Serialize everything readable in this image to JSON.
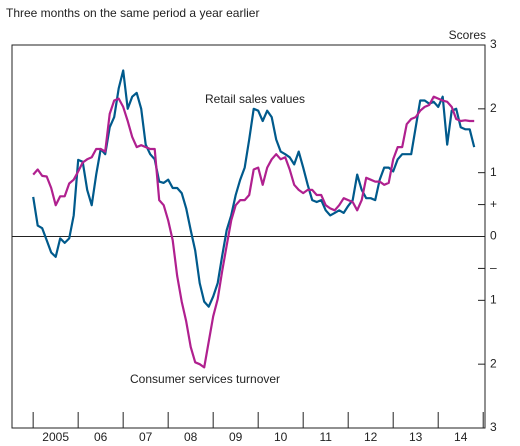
{
  "chart_data": {
    "type": "line",
    "subtitle": "Three months on the same period a year earlier",
    "y_axis_label": "Scores",
    "annotations": [
      "Retail sales values",
      "Consumer services turnover"
    ],
    "categories": [
      "2005",
      "06",
      "07",
      "08",
      "09",
      "10",
      "11",
      "12",
      "13",
      "14"
    ],
    "xlim": [
      2004.53,
      2015.04
    ],
    "xticks": [
      2005,
      2006,
      2007,
      2008,
      2009,
      2010,
      2011,
      2012,
      2013,
      2014,
      2015
    ],
    "ylim": [
      -3,
      3
    ],
    "yticks": [
      3,
      2,
      1,
      {
        "value": 0.5,
        "label": "+"
      },
      0,
      {
        "value": -0.5,
        "label": "–"
      },
      {
        "value": -1,
        "label": "1"
      },
      {
        "value": -2,
        "label": "2"
      },
      {
        "value": -3,
        "label": "3"
      }
    ],
    "zero_line": true,
    "x": [
      2005.0,
      2005.1,
      2005.2,
      2005.3,
      2005.4,
      2005.5,
      2005.6,
      2005.7,
      2005.8,
      2005.9,
      2006.0,
      2006.1,
      2006.2,
      2006.3,
      2006.4,
      2006.5,
      2006.6,
      2006.7,
      2006.8,
      2006.9,
      2007.0,
      2007.1,
      2007.2,
      2007.3,
      2007.4,
      2007.5,
      2007.6,
      2007.7,
      2007.8,
      2007.9,
      2008.0,
      2008.1,
      2008.2,
      2008.3,
      2008.4,
      2008.5,
      2008.6,
      2008.7,
      2008.8,
      2008.9,
      2009.0,
      2009.1,
      2009.2,
      2009.3,
      2009.4,
      2009.5,
      2009.6,
      2009.7,
      2009.8,
      2009.9,
      2010.0,
      2010.1,
      2010.2,
      2010.3,
      2010.4,
      2010.5,
      2010.6,
      2010.7,
      2010.8,
      2010.9,
      2011.0,
      2011.1,
      2011.2,
      2011.3,
      2011.4,
      2011.5,
      2011.6,
      2011.7,
      2011.8,
      2011.9,
      2012.0,
      2012.1,
      2012.2,
      2012.3,
      2012.4,
      2012.5,
      2012.6,
      2012.7,
      2012.8,
      2012.9,
      2013.0,
      2013.1,
      2013.2,
      2013.3,
      2013.4,
      2013.5,
      2013.6,
      2013.7,
      2013.8,
      2013.9,
      2014.0,
      2014.1,
      2014.2,
      2014.3,
      2014.4,
      2014.5,
      2014.6,
      2014.7,
      2014.8
    ],
    "series": [
      {
        "name": "Retail sales values",
        "color": "#005a8c",
        "values": [
          0.62,
          0.17,
          0.13,
          -0.06,
          -0.25,
          -0.32,
          -0.03,
          -0.1,
          -0.03,
          0.33,
          1.2,
          1.17,
          0.73,
          0.49,
          0.97,
          1.37,
          1.29,
          1.71,
          1.87,
          2.32,
          2.6,
          2.0,
          2.19,
          2.25,
          2.0,
          1.44,
          1.29,
          1.21,
          0.86,
          0.84,
          0.89,
          0.76,
          0.76,
          0.68,
          0.44,
          0.1,
          -0.22,
          -0.73,
          -1.02,
          -1.1,
          -0.94,
          -0.73,
          -0.3,
          0.1,
          0.33,
          0.65,
          0.89,
          1.08,
          1.52,
          2.0,
          1.97,
          1.81,
          1.97,
          1.87,
          1.52,
          1.33,
          1.29,
          1.24,
          1.13,
          1.33,
          1.08,
          0.81,
          0.57,
          0.54,
          0.57,
          0.41,
          0.33,
          0.37,
          0.41,
          0.37,
          0.48,
          0.57,
          0.97,
          0.73,
          0.6,
          0.6,
          0.57,
          0.89,
          1.08,
          1.08,
          1.02,
          1.21,
          1.29,
          1.29,
          1.29,
          1.71,
          2.13,
          2.13,
          2.08,
          2.11,
          2.03,
          2.19,
          1.44,
          1.97,
          2.0,
          1.71,
          1.68,
          1.68,
          1.4
        ]
      },
      {
        "name": "Consumer services turnover",
        "color": "#b0208f",
        "values": [
          0.97,
          1.05,
          0.95,
          0.94,
          0.76,
          0.49,
          0.63,
          0.63,
          0.83,
          0.89,
          1.02,
          1.16,
          1.21,
          1.24,
          1.37,
          1.37,
          1.33,
          1.92,
          2.13,
          2.16,
          2.03,
          1.81,
          1.56,
          1.4,
          1.43,
          1.4,
          1.37,
          1.37,
          0.57,
          0.49,
          0.25,
          -0.06,
          -0.62,
          -1.02,
          -1.33,
          -1.73,
          -1.97,
          -2.0,
          -2.05,
          -1.65,
          -1.25,
          -0.98,
          -0.54,
          -0.14,
          0.25,
          0.49,
          0.57,
          0.57,
          0.65,
          1.05,
          1.08,
          0.81,
          1.08,
          1.21,
          1.29,
          1.21,
          1.24,
          1.05,
          0.81,
          0.73,
          0.68,
          0.73,
          0.73,
          0.65,
          0.65,
          0.49,
          0.44,
          0.41,
          0.49,
          0.6,
          0.57,
          0.54,
          0.41,
          0.57,
          0.92,
          0.89,
          0.86,
          0.86,
          0.81,
          0.84,
          1.21,
          1.4,
          1.4,
          1.76,
          1.84,
          1.87,
          1.97,
          2.03,
          2.06,
          2.19,
          2.16,
          2.13,
          2.11,
          2.03,
          1.84,
          1.81,
          1.82,
          1.81,
          1.81
        ]
      }
    ]
  }
}
